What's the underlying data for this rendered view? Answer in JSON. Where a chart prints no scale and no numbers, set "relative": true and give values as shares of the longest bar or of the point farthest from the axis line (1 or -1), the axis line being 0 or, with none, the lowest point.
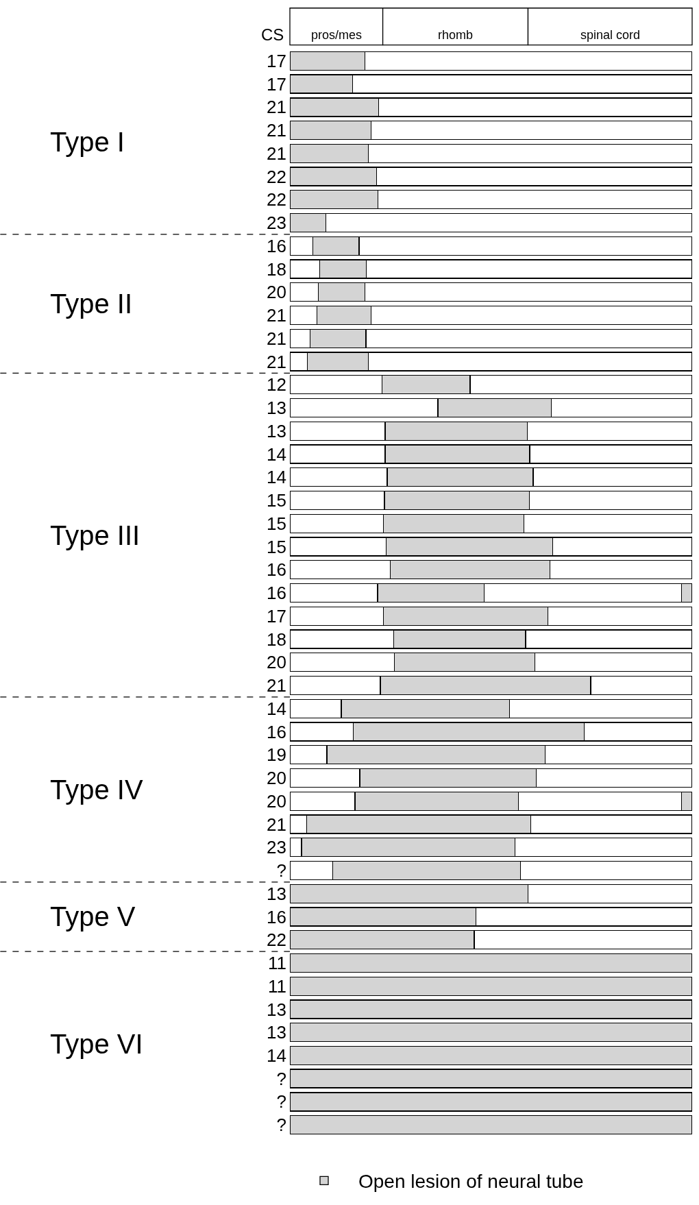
{
  "chart_data": {
    "type": "bar",
    "orientation": "horizontal",
    "stacked": true,
    "relative": true,
    "ylabel": "CS",
    "categories": [
      "17",
      "17",
      "21",
      "21",
      "21",
      "22",
      "22",
      "23",
      "16",
      "18",
      "20",
      "21",
      "21",
      "21",
      "12",
      "13",
      "13",
      "14",
      "14",
      "15",
      "15",
      "15",
      "16",
      "16",
      "17",
      "18",
      "20",
      "21",
      "14",
      "16",
      "19",
      "20",
      "20",
      "21",
      "23",
      "?",
      "13",
      "16",
      "22",
      "11",
      "11",
      "13",
      "13",
      "14",
      "?",
      "?",
      "?"
    ],
    "series": [
      {
        "color": "#ffffff",
        "values": [
          null,
          null,
          null,
          null,
          null,
          null,
          null,
          null,
          0.057,
          0.074,
          0.071,
          0.067,
          0.05,
          0.044,
          0.229,
          0.368,
          0.237,
          0.237,
          0.242,
          0.235,
          0.233,
          0.239,
          0.25,
          0.218,
          0.233,
          0.258,
          0.26,
          0.225,
          0.128,
          0.158,
          0.092,
          0.174,
          0.162,
          0.042,
          0.029,
          0.107,
          null,
          null,
          null,
          null,
          null,
          null,
          null,
          null,
          null,
          null,
          null
        ]
      },
      {
        "name": "Open lesion of neural tube",
        "color": "#d4d4d4",
        "values": [
          0.187,
          0.156,
          0.221,
          0.202,
          0.195,
          0.216,
          0.219,
          0.09,
          0.115,
          0.116,
          0.115,
          0.135,
          0.139,
          0.151,
          0.219,
          0.282,
          0.353,
          0.359,
          0.363,
          0.36,
          0.349,
          0.414,
          0.397,
          0.265,
          0.408,
          0.328,
          0.349,
          0.523,
          0.418,
          0.574,
          0.542,
          0.439,
          0.406,
          0.557,
          0.531,
          0.466,
          0.592,
          0.462,
          0.458,
          1,
          1,
          1,
          1,
          1,
          1,
          1,
          1
        ]
      },
      {
        "color": "#ffffff",
        "values": [
          0.813,
          0.844,
          0.779,
          0.798,
          0.805,
          0.784,
          0.781,
          0.91,
          0.828,
          0.81,
          0.814,
          0.798,
          0.811,
          0.805,
          0.552,
          0.35,
          0.41,
          0.404,
          0.395,
          0.405,
          0.418,
          0.347,
          0.353,
          0.49,
          0.359,
          0.414,
          0.391,
          0.252,
          0.454,
          0.268,
          0.366,
          0.387,
          0.405,
          0.401,
          0.44,
          0.427,
          0.408,
          0.538,
          0.542,
          null,
          null,
          null,
          null,
          null,
          null,
          null,
          null
        ]
      },
      {
        "color": "#d4d4d4",
        "values": [
          null,
          null,
          null,
          null,
          null,
          null,
          null,
          null,
          null,
          null,
          null,
          null,
          null,
          null,
          null,
          null,
          null,
          null,
          null,
          null,
          null,
          null,
          null,
          0.027,
          null,
          null,
          null,
          null,
          null,
          null,
          null,
          null,
          0.027,
          null,
          null,
          null,
          null,
          null,
          null,
          null,
          null,
          null,
          null,
          null,
          null,
          null,
          null
        ]
      }
    ],
    "annotations": [
      "pros/mes",
      "rhomb",
      "spinal cord",
      "Type I",
      "Type II",
      "Type III",
      "Type IV",
      "Type V",
      "Type VI"
    ],
    "legend": "bottom"
  }
}
